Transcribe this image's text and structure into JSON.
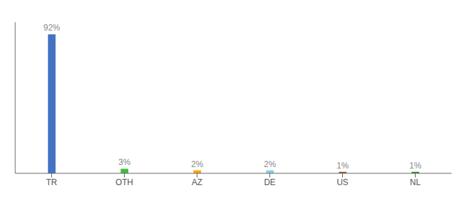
{
  "chart_data": {
    "type": "bar",
    "categories": [
      "TR",
      "OTH",
      "AZ",
      "DE",
      "US",
      "NL"
    ],
    "values": [
      92,
      3,
      2,
      2,
      1,
      1
    ],
    "value_labels": [
      "92%",
      "3%",
      "2%",
      "2%",
      "1%",
      "1%"
    ],
    "colors": [
      "#4472C4",
      "#3DBD3D",
      "#FFA500",
      "#87CEEB",
      "#A0522D",
      "#2E8B2E"
    ],
    "ylim": [
      0,
      100
    ],
    "data_labels": true,
    "tick_labels": "x",
    "grid": false
  }
}
